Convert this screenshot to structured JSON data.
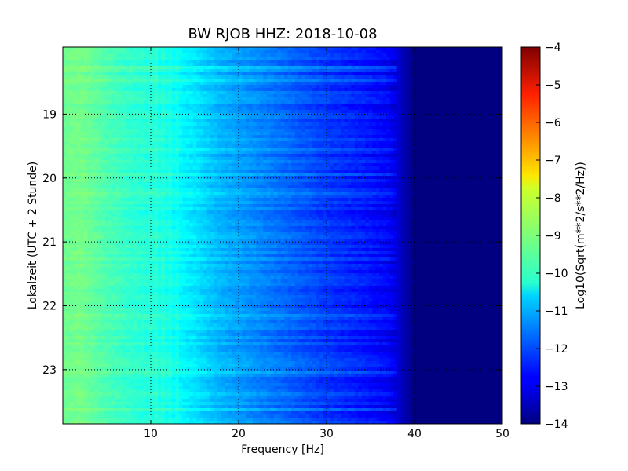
{
  "chart_data": {
    "type": "heatmap",
    "title": "BW RJOB HHZ: 2018-10-08",
    "xlabel": "Frequency [Hz]",
    "ylabel": "Lokalzeit (UTC + 2 Stunde)",
    "xlim": [
      0,
      50
    ],
    "x_ticks": [
      10,
      20,
      30,
      40,
      50
    ],
    "ylim": [
      17.95,
      23.85
    ],
    "y_axis_inverted": true,
    "y_ticks": [
      19,
      20,
      21,
      22,
      23
    ],
    "grid": true,
    "colormap": "jet",
    "colorbar": {
      "label": "Log10(Sqrt(m**2/s**2/Hz))",
      "range": [
        -14,
        -4
      ],
      "ticks": [
        -4,
        -5,
        -6,
        -7,
        -8,
        -9,
        -10,
        -11,
        -12,
        -13,
        -14
      ]
    },
    "value_profile": {
      "frequency_hz": [
        0,
        2,
        5,
        8,
        10,
        12,
        15,
        18,
        20,
        25,
        30,
        34,
        37,
        38,
        40,
        50
      ],
      "level": [
        -9.2,
        -9.1,
        -9.5,
        -9.8,
        -9.9,
        -10.1,
        -10.5,
        -11.0,
        -11.2,
        -11.7,
        -12.2,
        -12.5,
        -12.8,
        -13.1,
        -14,
        -14
      ]
    }
  }
}
